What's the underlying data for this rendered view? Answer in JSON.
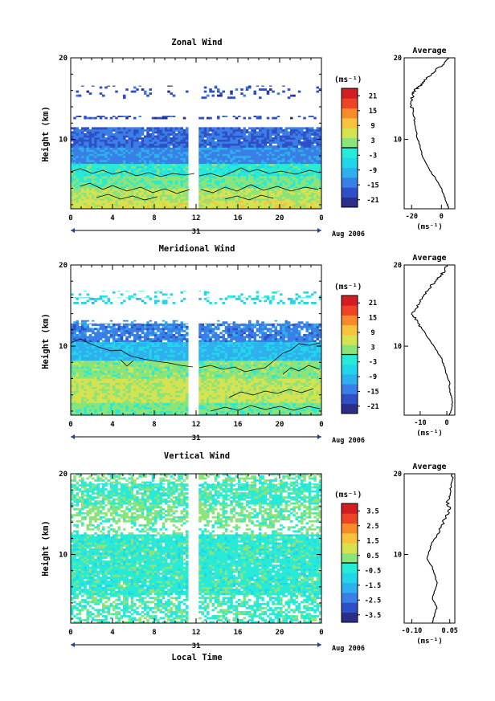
{
  "figure": {
    "xlabel": "Local Time",
    "date_label": "Aug 2006",
    "day_label": "31",
    "height_label": "Height (km)",
    "unit_label": "(ms⁻¹)",
    "average_title": "Average"
  },
  "chart_data": [
    {
      "type": "heatmap",
      "title": "Zonal Wind",
      "xlabel": "",
      "ylabel": "Height (km)",
      "x_ticks": [
        "0",
        "4",
        "8",
        "12",
        "16",
        "20",
        "0"
      ],
      "y_ticks": [
        "20",
        "10"
      ],
      "xlim": [
        0,
        24
      ],
      "ylim": [
        1.5,
        20
      ],
      "colorbar_ticks": [
        "21",
        "15",
        "9",
        "3",
        "-3",
        "-9",
        "-15",
        "-21"
      ],
      "colorbar_range": [
        -24,
        24
      ],
      "colorbar_colors": [
        "#2b2d87",
        "#2e4fc8",
        "#3a7fe5",
        "#2fb0ee",
        "#22d6ea",
        "#27ead7",
        "#8be47a",
        "#d6e24f",
        "#f7c23c",
        "#f78a2b",
        "#ee4426",
        "#d21d22"
      ],
      "gap_hours": [
        11.4,
        12.1
      ],
      "layers": [
        {
          "z_from": 15,
          "z_to": 16.6,
          "value": -18,
          "coverage": 0.14
        },
        {
          "z_from": 12.5,
          "z_to": 12.9,
          "value": -18,
          "coverage": 0.3
        },
        {
          "z_from": 9,
          "z_to": 11.5,
          "value": -16,
          "coverage": 0.95
        },
        {
          "z_from": 7,
          "z_to": 9,
          "value": -13,
          "coverage": 1
        },
        {
          "z_from": 5.5,
          "z_to": 7,
          "value": -2,
          "coverage": 1
        },
        {
          "z_from": 4,
          "z_to": 5.5,
          "value": 1,
          "coverage": 1
        },
        {
          "z_from": 2.5,
          "z_to": 4,
          "value": 4,
          "coverage": 1
        },
        {
          "z_from": 1.5,
          "z_to": 2.5,
          "value": 6,
          "coverage": 1
        }
      ],
      "profile": {
        "x": [
          5,
          4,
          2,
          0,
          -3,
          -7,
          -10,
          -13,
          -14,
          -16,
          -17,
          -18,
          -19,
          -20,
          -20,
          -19,
          -18,
          -15,
          -12,
          -8,
          -4,
          2,
          5
        ],
        "z": [
          1.5,
          2,
          3,
          4,
          5,
          6,
          7,
          8,
          9,
          10,
          11,
          12,
          13,
          14,
          15,
          15.5,
          16,
          16.5,
          17,
          17.8,
          18.5,
          19.2,
          20
        ],
        "xlim": [
          -25,
          9
        ],
        "x_ticks": [
          "-20",
          "0"
        ],
        "y_ticks": [
          "20",
          "10"
        ],
        "xlabel": "(ms⁻¹)"
      }
    },
    {
      "type": "heatmap",
      "title": "Meridional Wind",
      "xlabel": "",
      "ylabel": "Height (km)",
      "x_ticks": [
        "0",
        "4",
        "8",
        "12",
        "16",
        "20",
        "0"
      ],
      "y_ticks": [
        "20",
        "10"
      ],
      "xlim": [
        0,
        24
      ],
      "ylim": [
        1.5,
        20
      ],
      "colorbar_ticks": [
        "21",
        "15",
        "9",
        "3",
        "-3",
        "-9",
        "-15",
        "-21"
      ],
      "colorbar_range": [
        -24,
        24
      ],
      "colorbar_colors": [
        "#2b2d87",
        "#2e4fc8",
        "#3a7fe5",
        "#2fb0ee",
        "#22d6ea",
        "#27ead7",
        "#8be47a",
        "#d6e24f",
        "#f7c23c",
        "#f78a2b",
        "#ee4426",
        "#d21d22"
      ],
      "gap_hours": [
        11.4,
        12.1
      ],
      "layers": [
        {
          "z_from": 16,
          "z_to": 16.8,
          "value": -4,
          "coverage": 0.15
        },
        {
          "z_from": 15.2,
          "z_to": 16,
          "value": -6,
          "coverage": 0.25
        },
        {
          "z_from": 12.8,
          "z_to": 13.2,
          "value": -12,
          "coverage": 0.25
        },
        {
          "z_from": 10.5,
          "z_to": 12.8,
          "value": -14,
          "coverage": 0.85
        },
        {
          "z_from": 8.2,
          "z_to": 10.5,
          "value": -9,
          "coverage": 1
        },
        {
          "z_from": 6,
          "z_to": 8.2,
          "value": 2,
          "coverage": 1
        },
        {
          "z_from": 3,
          "z_to": 6,
          "value": 5,
          "coverage": 1
        },
        {
          "z_from": 1.5,
          "z_to": 3,
          "value": 1,
          "coverage": 1
        }
      ],
      "profile": {
        "x": [
          1,
          2,
          2,
          1,
          1,
          0,
          -1,
          -2,
          -4,
          -6,
          -8,
          -10,
          -12,
          -13,
          -11,
          -9,
          -7,
          -5,
          -3,
          -1,
          0
        ],
        "z": [
          1.5,
          2.5,
          3.5,
          4.5,
          5.5,
          6.5,
          7.5,
          8.5,
          9.5,
          10.5,
          11.5,
          12.5,
          13.5,
          14,
          15,
          16,
          17,
          17.8,
          18.5,
          19.2,
          20
        ],
        "xlim": [
          -16,
          3
        ],
        "x_ticks": [
          "-10",
          "0"
        ],
        "y_ticks": [
          "20",
          "10"
        ],
        "xlabel": "(ms⁻¹)"
      }
    },
    {
      "type": "heatmap",
      "title": "Vertical Wind",
      "xlabel": "Local Time",
      "ylabel": "Height (km)",
      "x_ticks": [
        "0",
        "4",
        "8",
        "12",
        "16",
        "20",
        "0"
      ],
      "y_ticks": [
        "20",
        "10"
      ],
      "xlim": [
        0,
        24
      ],
      "ylim": [
        1.5,
        20
      ],
      "colorbar_ticks": [
        "3.5",
        "2.5",
        "1.5",
        "0.5",
        "-0.5",
        "-1.5",
        "-2.5",
        "-3.5"
      ],
      "colorbar_range": [
        -4,
        4
      ],
      "colorbar_colors": [
        "#2b2d87",
        "#2e4fc8",
        "#3a7fe5",
        "#2fb0ee",
        "#22d6ea",
        "#27ead7",
        "#8be47a",
        "#d6e24f",
        "#f7c23c",
        "#f78a2b",
        "#ee4426",
        "#d21d22"
      ],
      "gap_hours": [
        11.4,
        12.1
      ],
      "layers": [
        {
          "z_from": 18.8,
          "z_to": 20,
          "value": 0.1,
          "coverage": 0.5
        },
        {
          "z_from": 16.2,
          "z_to": 18.8,
          "value": -0.2,
          "coverage": 0.8
        },
        {
          "z_from": 14,
          "z_to": 16.2,
          "value": 0.2,
          "coverage": 0.65
        },
        {
          "z_from": 12.5,
          "z_to": 14,
          "value": 0.1,
          "coverage": 0.35
        },
        {
          "z_from": 5,
          "z_to": 12.5,
          "value": -0.3,
          "coverage": 0.95
        },
        {
          "z_from": 1.5,
          "z_to": 5,
          "value": -0.2,
          "coverage": 0.6
        }
      ],
      "profile": {
        "x": [
          -0.02,
          -0.01,
          0.0,
          -0.02,
          -0.01,
          0.0,
          -0.01,
          -0.02,
          -0.04,
          -0.03,
          -0.02,
          0.0,
          0.02,
          0.03,
          0.05,
          0.04,
          0.05,
          0.06,
          0.06
        ],
        "z": [
          1.5,
          2.5,
          3.5,
          4.5,
          5.5,
          6.5,
          7.5,
          8.5,
          9.5,
          10.5,
          11.5,
          12.5,
          13.5,
          14.5,
          15.5,
          16.5,
          17.5,
          18.5,
          20
        ],
        "xlim": [
          -0.13,
          0.07
        ],
        "x_ticks": [
          "-0.10",
          "0.05"
        ],
        "y_ticks": [
          "20",
          "10"
        ],
        "xlabel": "(ms⁻¹)"
      }
    }
  ]
}
